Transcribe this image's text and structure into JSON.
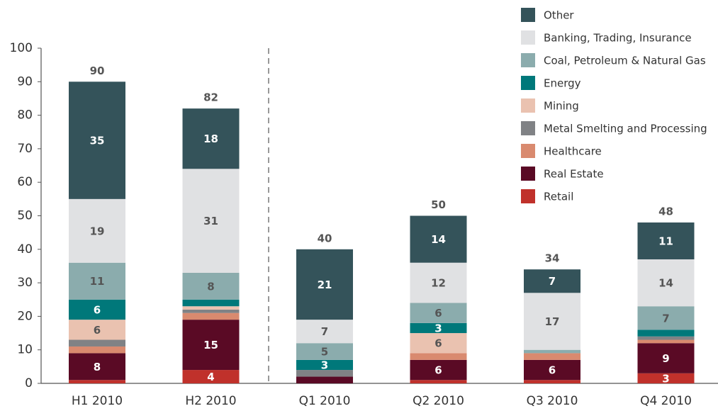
{
  "chart_data": {
    "type": "stacked_bar",
    "categories": [
      "H1 2010",
      "H2 2010",
      "Q1 2010",
      "Q2 2010",
      "Q3 2010",
      "Q4 2010"
    ],
    "series": [
      {
        "name": "Retail",
        "color": "#c0312b",
        "values": [
          1,
          4,
          0,
          1,
          1,
          3
        ]
      },
      {
        "name": "Real Estate",
        "color": "#5a0a25",
        "values": [
          8,
          15,
          2,
          6,
          6,
          9
        ]
      },
      {
        "name": "Healthcare",
        "color": "#d98a6f",
        "values": [
          2,
          2,
          0,
          2,
          2,
          1
        ]
      },
      {
        "name": "Metal Smelting and Processing",
        "color": "#808285",
        "values": [
          2,
          1,
          2,
          0,
          0,
          1
        ]
      },
      {
        "name": "Mining",
        "color": "#eac2b0",
        "values": [
          6,
          1,
          0,
          6,
          0,
          0
        ]
      },
      {
        "name": "Energy",
        "color": "#00787a",
        "values": [
          6,
          2,
          3,
          3,
          0,
          2
        ]
      },
      {
        "name": "Coal, Petroleum & Natural Gas",
        "color": "#8bacad",
        "values": [
          11,
          8,
          5,
          6,
          1,
          7
        ]
      },
      {
        "name": "Banking, Trading, Insurance",
        "color": "#e0e1e3",
        "values": [
          19,
          31,
          7,
          12,
          17,
          14
        ]
      },
      {
        "name": "Other",
        "color": "#34535a",
        "values": [
          35,
          18,
          21,
          14,
          7,
          11
        ]
      }
    ],
    "totals": [
      90,
      82,
      40,
      50,
      34,
      48
    ],
    "ylim": [
      0,
      100
    ],
    "yticks": [
      0,
      10,
      20,
      30,
      40,
      50,
      60,
      70,
      80,
      90,
      100
    ],
    "legend": "top-right"
  }
}
